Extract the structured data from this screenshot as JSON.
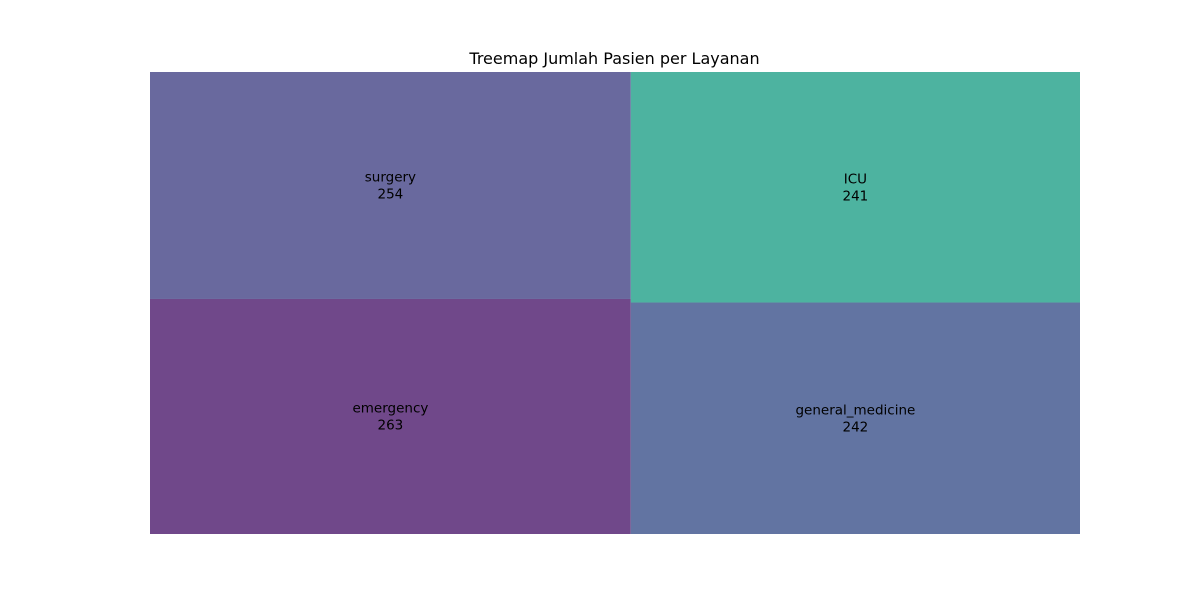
{
  "chart_data": {
    "type": "treemap",
    "title": "Treemap Jumlah Pasien per Layanan",
    "xlabel": "",
    "ylabel": "",
    "grid": false,
    "axes_visible": false,
    "items": [
      {
        "label": "emergency",
        "value": 263,
        "color": "#70488a"
      },
      {
        "label": "surgery",
        "value": 254,
        "color": "#69699e"
      },
      {
        "label": "general_medicine",
        "value": 242,
        "color": "#6274a2"
      },
      {
        "label": "ICU",
        "value": 241,
        "color": "#4db3a0"
      }
    ]
  }
}
